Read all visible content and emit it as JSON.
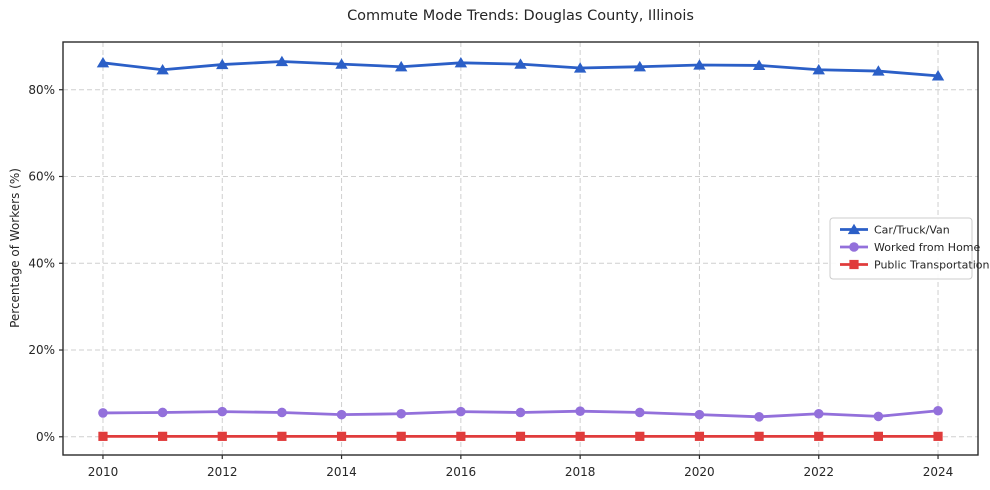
{
  "chart_data": {
    "type": "line",
    "title": "Commute Mode Trends: Douglas County, Illinois",
    "xlabel": "",
    "ylabel": "Percentage of Workers (%)",
    "x": [
      2010,
      2011,
      2012,
      2013,
      2014,
      2015,
      2016,
      2017,
      2018,
      2019,
      2020,
      2021,
      2022,
      2023,
      2024
    ],
    "xtick_values": [
      2010,
      2012,
      2014,
      2016,
      2018,
      2020,
      2022,
      2024
    ],
    "xtick_labels": [
      "2010",
      "2012",
      "2014",
      "2016",
      "2018",
      "2020",
      "2022",
      "2024"
    ],
    "ytick_values": [
      0,
      20,
      40,
      60,
      80
    ],
    "ytick_labels": [
      "0%",
      "20%",
      "40%",
      "60%",
      "80%"
    ],
    "xlim": [
      2009.33,
      2024.67
    ],
    "ylim": [
      -4.2,
      91.0
    ],
    "grid": true,
    "series": [
      {
        "name": "Car/Truck/Van",
        "color": "#2b5fc7",
        "marker": "triangle",
        "values": [
          86.2,
          84.6,
          85.8,
          86.5,
          85.9,
          85.3,
          86.2,
          85.9,
          85.0,
          85.3,
          85.7,
          85.6,
          84.6,
          84.3,
          83.2
        ]
      },
      {
        "name": "Worked from Home",
        "color": "#9370db",
        "marker": "circle",
        "values": [
          5.5,
          5.6,
          5.8,
          5.6,
          5.1,
          5.3,
          5.8,
          5.6,
          5.9,
          5.6,
          5.1,
          4.6,
          5.3,
          4.7,
          6.0
        ]
      },
      {
        "name": "Public Transportation",
        "color": "#e03c3c",
        "marker": "square",
        "values": [
          0.1,
          0.1,
          0.1,
          0.1,
          0.1,
          0.1,
          0.1,
          0.1,
          0.1,
          0.1,
          0.1,
          0.1,
          0.1,
          0.1,
          0.1
        ]
      }
    ],
    "legend": {
      "position": "center-right",
      "background": "#ffffff",
      "border_color": "#cccccc"
    },
    "axis_color": "#2b2b2b",
    "grid_color": "#cfcfcf",
    "text_color": "#262626",
    "background": "#ffffff"
  }
}
